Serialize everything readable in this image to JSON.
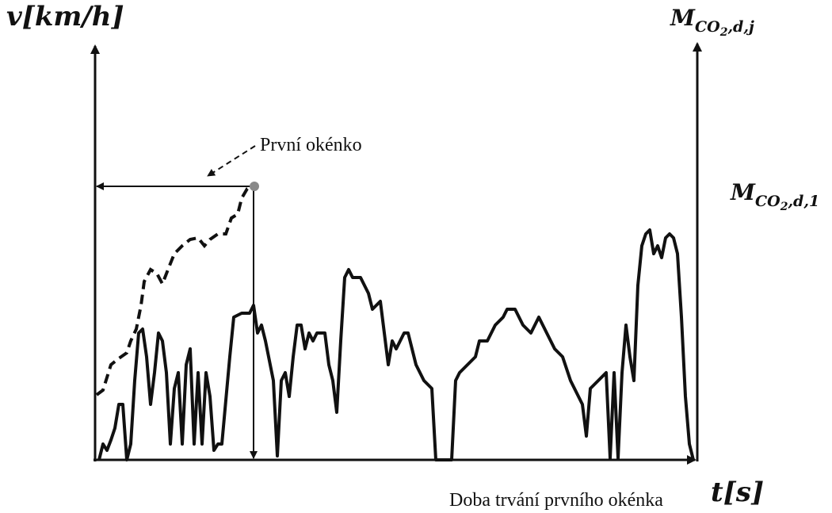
{
  "y_label": {
    "base": "v",
    "unit": "[km/h]"
  },
  "y2_label": {
    "base": "M",
    "sub": "CO",
    "sub2": "2",
    "tail": ",d,j"
  },
  "y2_marker": {
    "base": "M",
    "sub": "CO",
    "sub2": "2",
    "tail": ",d,1"
  },
  "annotation": "První okénko",
  "x_caption": "Doba trvání prvního okénka",
  "x_label": {
    "base": "t",
    "unit": "[s]"
  }
}
